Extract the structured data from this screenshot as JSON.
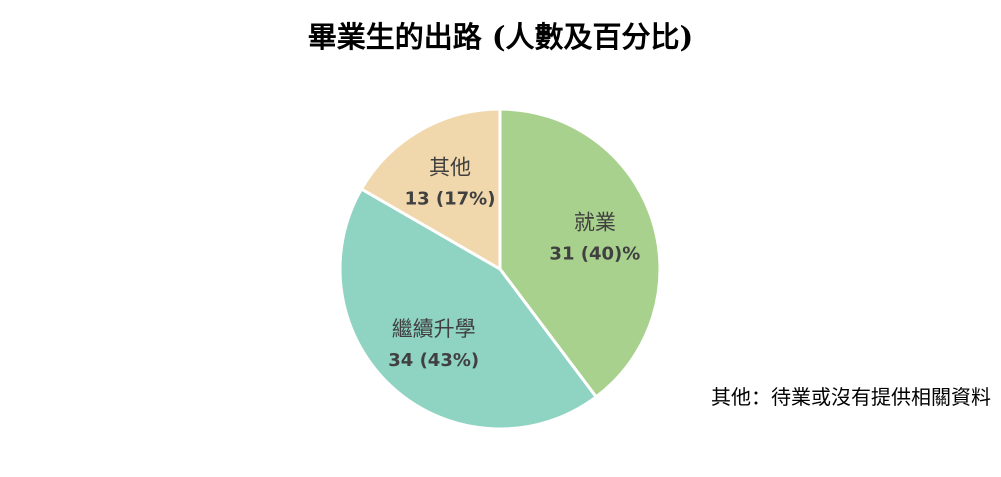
{
  "chart_data": {
    "type": "pie",
    "title": "畢業生的出路 (人數及百分比)",
    "slices": [
      {
        "label": "就業",
        "count": 31,
        "value_text": "31 (40)%",
        "percent": 40,
        "color": "#a9d18e"
      },
      {
        "label": "繼續升學",
        "count": 34,
        "value_text": "34 (43%)",
        "percent": 43,
        "color": "#8fd3c2"
      },
      {
        "label": "其他",
        "count": 13,
        "value_text": "13 (17%)",
        "percent": 17,
        "color": "#f0d8ac"
      }
    ],
    "note": "其他：待業或沒有提供相關資料",
    "start_angle": "12 o'clock",
    "direction": "clockwise",
    "legend": "none (labels inside slices)"
  }
}
